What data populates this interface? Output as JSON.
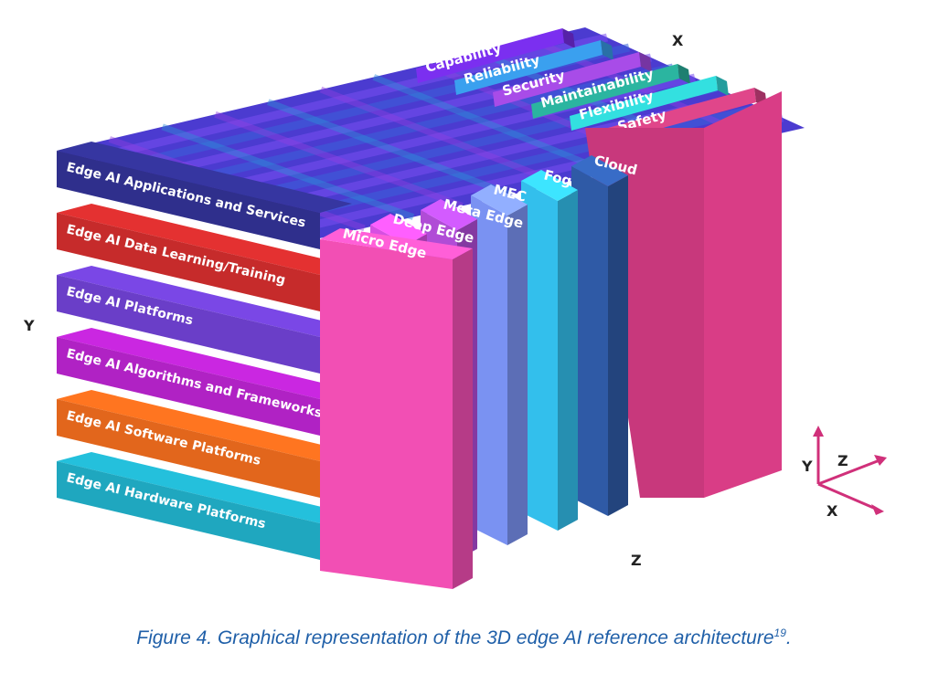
{
  "axes": {
    "x": "X",
    "y": "Y",
    "z": "Z"
  },
  "layers": [
    {
      "label": "Edge AI Applications and Services",
      "color": "#2f2f8c"
    },
    {
      "label": "Edge AI Data Learning/Training",
      "color": "#c62b2b"
    },
    {
      "label": "Edge AI Platforms",
      "color": "#6a3ec8"
    },
    {
      "label": "Edge AI Algorithms and Frameworks",
      "color": "#b022c4"
    },
    {
      "label": "Edge AI Software Platforms",
      "color": "#e2661c"
    },
    {
      "label": "Edge AI Hardware Platforms",
      "color": "#1fa7bf"
    }
  ],
  "tiers": [
    {
      "label": "Micro Edge",
      "color": "#f24fb4"
    },
    {
      "label": "Deep Edge",
      "color": "#d64fe2"
    },
    {
      "label": "Meta Edge",
      "color": "#b04cd6"
    },
    {
      "label": "MEC",
      "color": "#7a92f2"
    },
    {
      "label": "Fog",
      "color": "#33bfec"
    },
    {
      "label": "Cloud",
      "color": "#2f5aa6"
    }
  ],
  "attributes": [
    {
      "label": "Capability",
      "color": "#7b2ff0"
    },
    {
      "label": "Reliability",
      "color": "#3aa0ef"
    },
    {
      "label": "Security",
      "color": "#a84ce8"
    },
    {
      "label": "Maintainability",
      "color": "#2bb5a0"
    },
    {
      "label": "Flexibility",
      "color": "#33e0e0"
    },
    {
      "label": "Safety",
      "color": "#e0468a"
    }
  ],
  "caption": {
    "text": "Figure 4. Graphical representation of the 3D edge AI reference architecture",
    "ref": "19",
    "end": "."
  }
}
